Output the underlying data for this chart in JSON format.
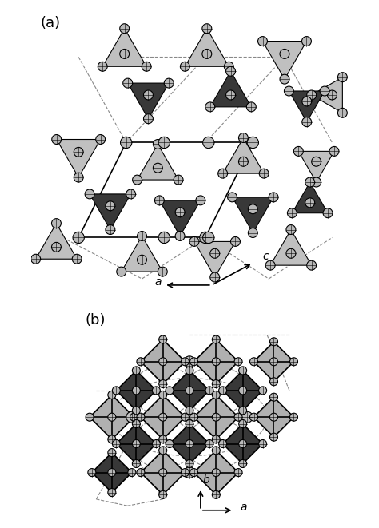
{
  "fig_width": 4.74,
  "fig_height": 6.61,
  "bg_color": "#ffffff",
  "panel_a_label": "(a)",
  "panel_b_label": "(b)",
  "axis_labels_a": {
    "c": "c",
    "a": "a"
  },
  "axis_labels_b": {
    "b": "b",
    "a": "a"
  },
  "light_gray": "#c8c8c8",
  "dark_gray": "#404040",
  "atom_color": "#b0b0b0",
  "atom_edge": "#000000",
  "line_color": "#000000",
  "dashed_color": "#888888"
}
